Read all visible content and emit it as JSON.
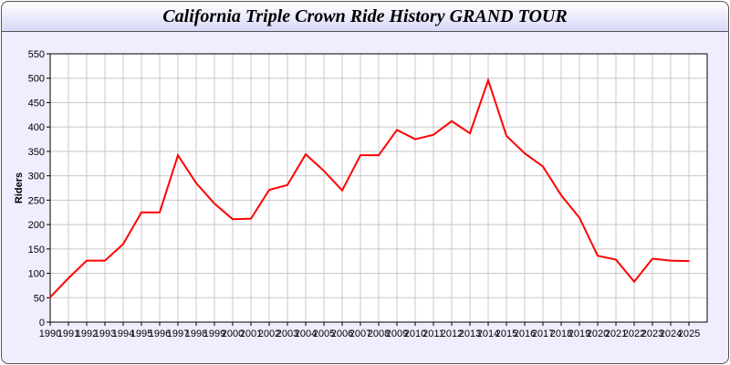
{
  "chart_data": {
    "type": "line",
    "title": "California Triple Crown Ride History GRAND TOUR",
    "xlabel": "",
    "ylabel": "Riders",
    "ylim": [
      0,
      550
    ],
    "yticks": [
      0,
      50,
      100,
      150,
      200,
      250,
      300,
      350,
      400,
      450,
      500,
      550
    ],
    "grid": true,
    "line_color": "#ff0000",
    "x": [
      "1990",
      "1991",
      "1992",
      "1993",
      "1994",
      "1995",
      "1996",
      "1997",
      "1998",
      "1999",
      "2000",
      "2001",
      "2002",
      "2003",
      "2004",
      "2005",
      "2006",
      "2007",
      "2008",
      "2009",
      "2010",
      "2011",
      "2012",
      "2013",
      "2014",
      "2015",
      "2016",
      "2017",
      "2018",
      "2019",
      "2020",
      "2021",
      "2022",
      "2023",
      "2024",
      "2025"
    ],
    "values": [
      51,
      90,
      126,
      126,
      160,
      225,
      225,
      342,
      285,
      243,
      211,
      212,
      271,
      281,
      344,
      310,
      270,
      342,
      342,
      394,
      375,
      384,
      412,
      387,
      496,
      382,
      346,
      319,
      260,
      214,
      136,
      128,
      83,
      130,
      126,
      125
    ]
  }
}
